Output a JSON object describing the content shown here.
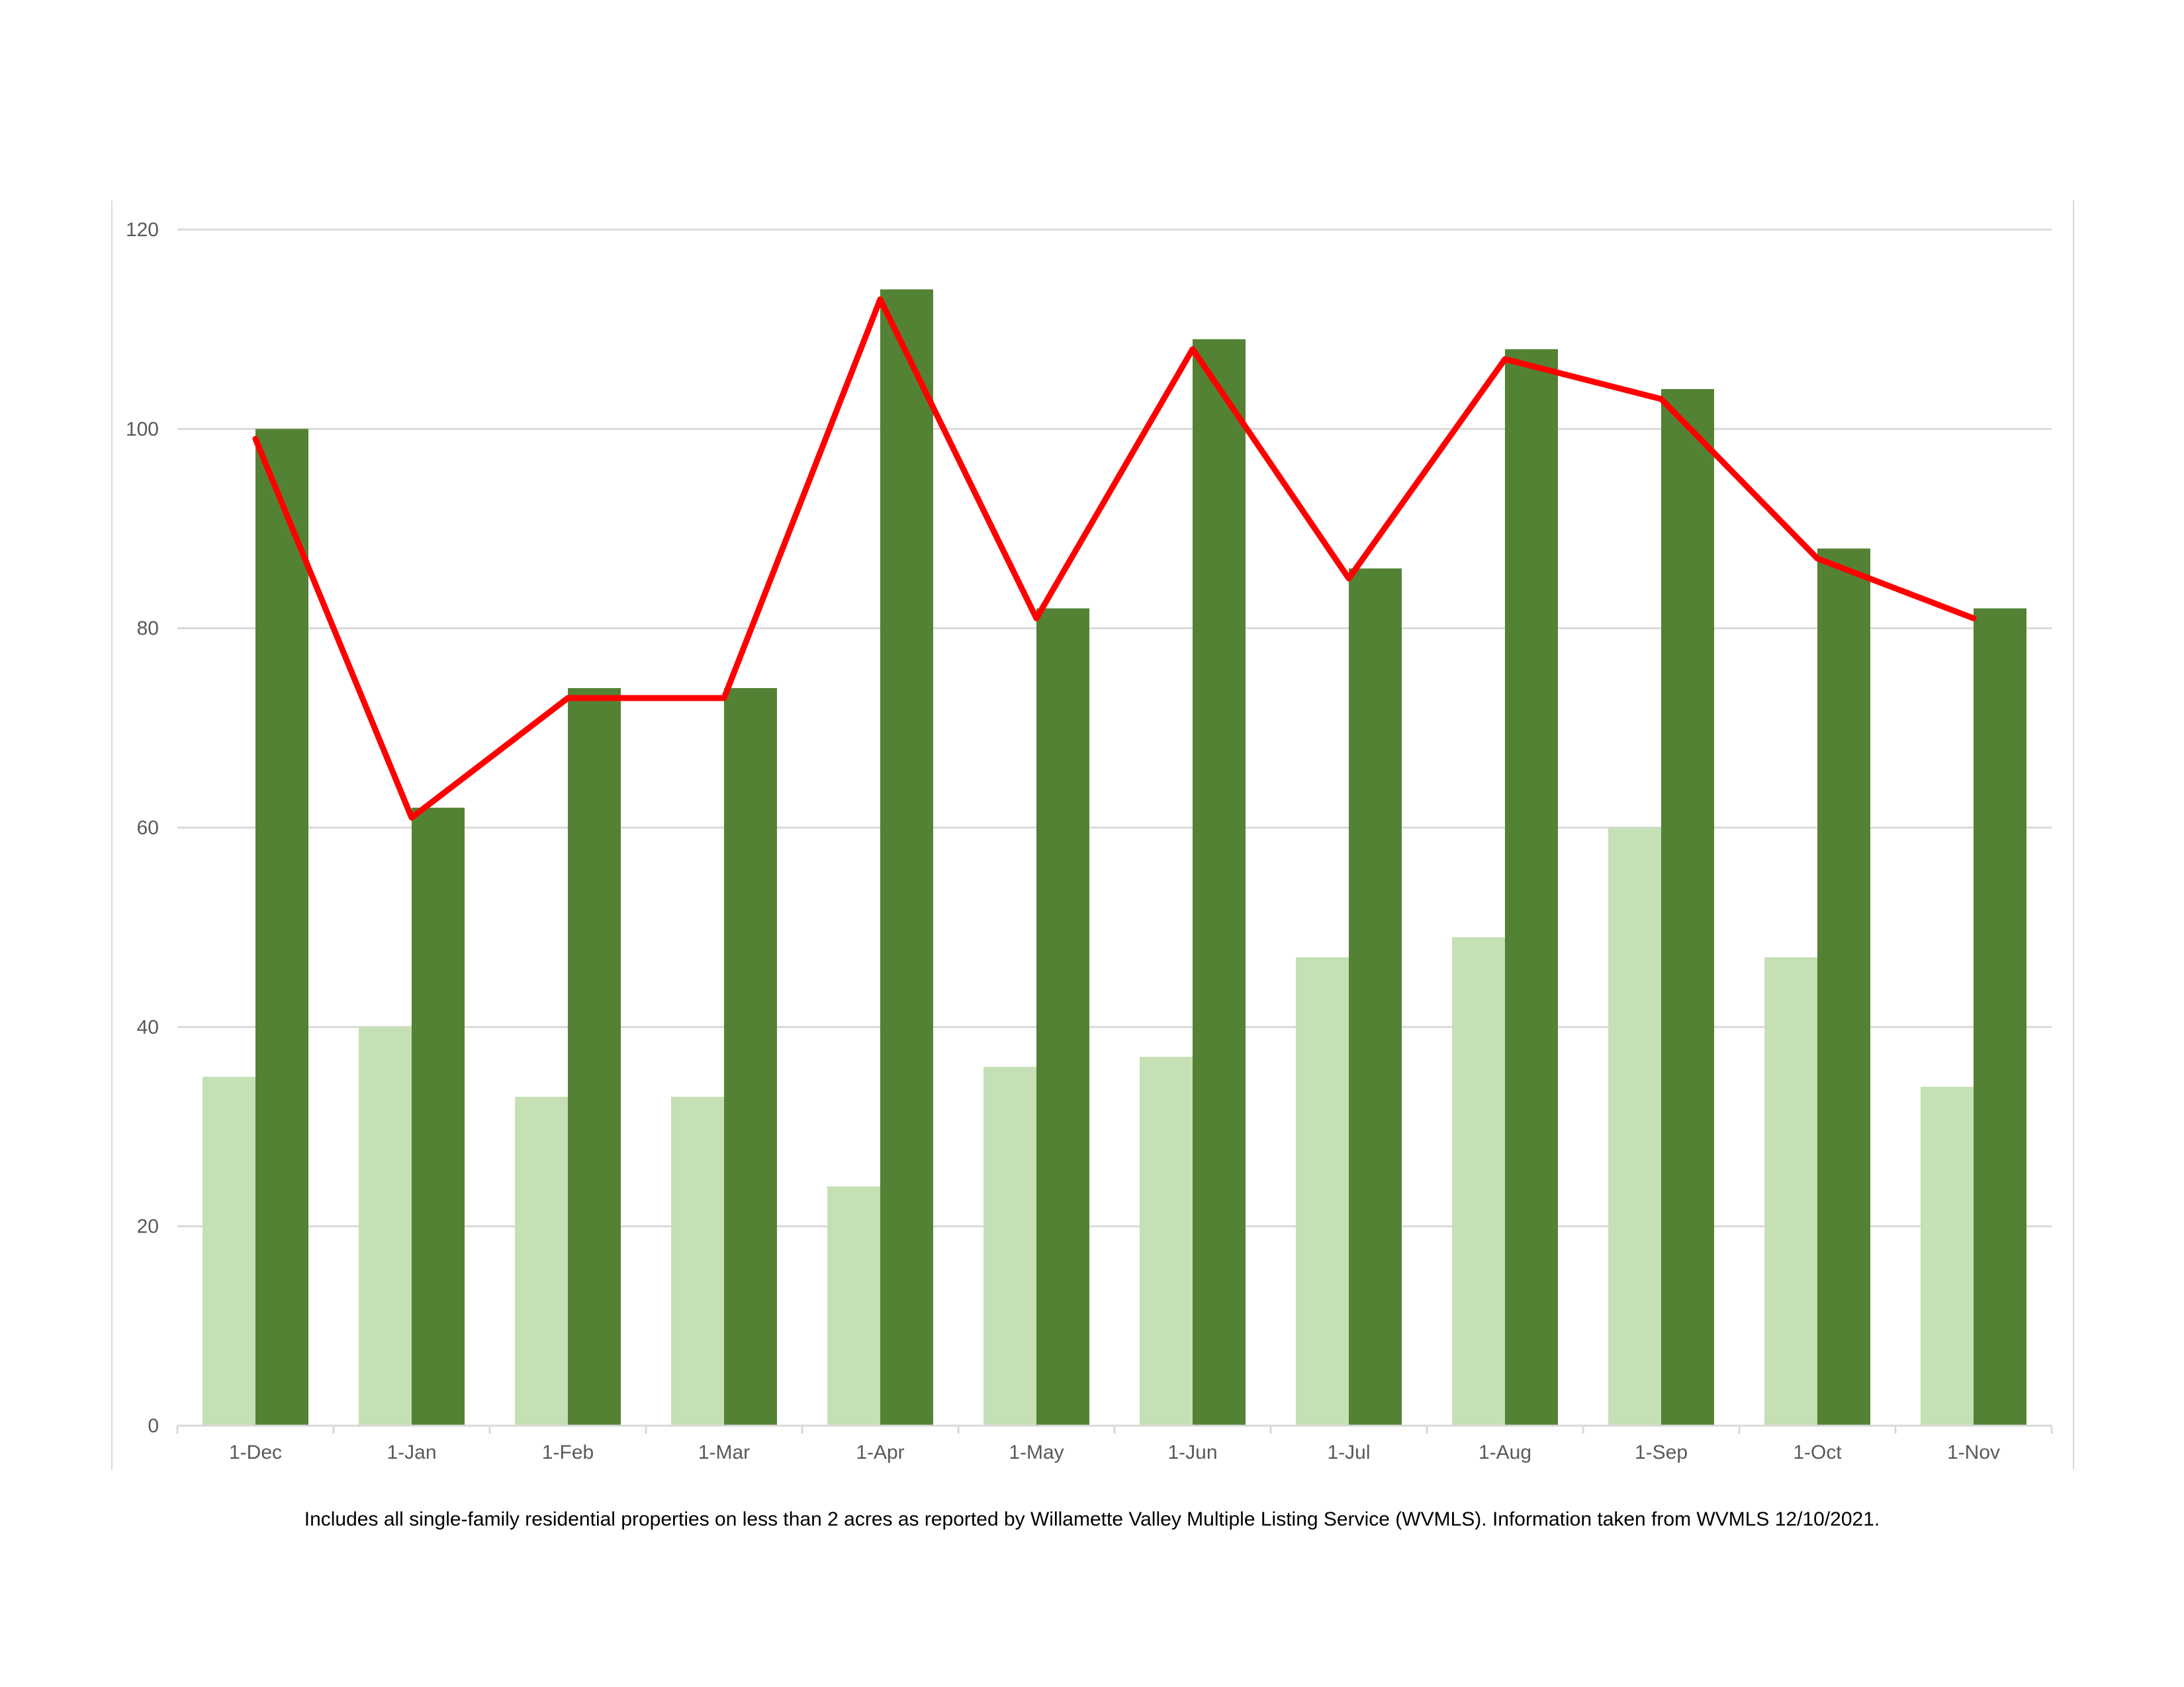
{
  "chart_data": {
    "type": "bar",
    "categories": [
      "1-Dec",
      "1-Jan",
      "1-Feb",
      "1-Mar",
      "1-Apr",
      "1-May",
      "1-Jun",
      "1-Jul",
      "1-Aug",
      "1-Sep",
      "1-Oct",
      "1-Nov"
    ],
    "series": [
      {
        "type": "bar",
        "color": "#c5e0b4",
        "values": [
          35,
          40,
          33,
          33,
          24,
          36,
          37,
          47,
          49,
          60,
          47,
          34
        ]
      },
      {
        "type": "bar",
        "color": "#548235",
        "values": [
          100,
          62,
          74,
          74,
          114,
          82,
          109,
          86,
          108,
          104,
          88,
          82
        ]
      },
      {
        "type": "line",
        "color": "#ff0000",
        "values": [
          99,
          61,
          73,
          73,
          113,
          81,
          108,
          85,
          107,
          103,
          87,
          81
        ]
      }
    ],
    "yticks": [
      0,
      20,
      40,
      60,
      80,
      100,
      120
    ],
    "ylim": [
      0,
      120
    ],
    "grid": true,
    "legend": "none"
  },
  "footnote": "Includes all single-family residential properties on less than 2 acres as reported by Willamette Valley Multiple Listing Service (WVMLS). Information taken from WVMLS 12/10/2021."
}
